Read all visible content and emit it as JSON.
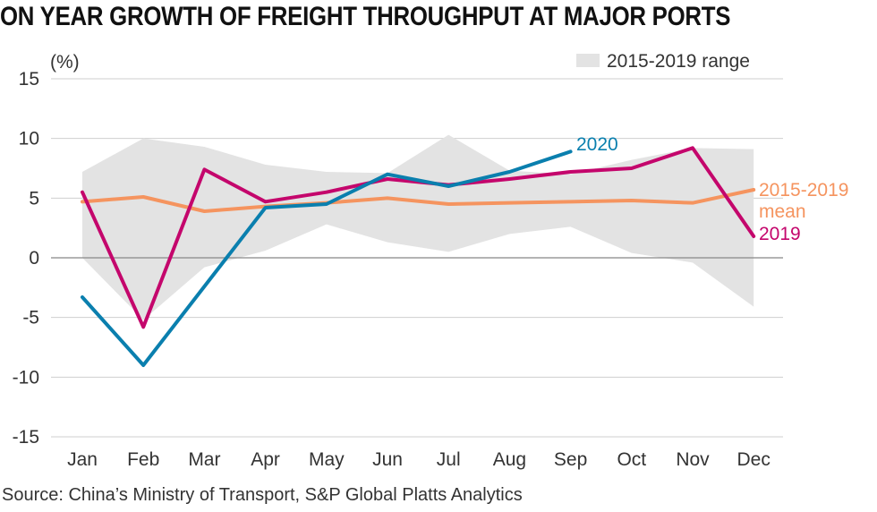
{
  "header": {
    "title": "ON YEAR GROWTH OF FREIGHT THROUGHPUT AT MAJOR PORTS"
  },
  "footer": {
    "source": "Source: China’s Ministry of Transport, S&P Global Platts Analytics"
  },
  "colors": {
    "range": "#e3e3e3",
    "mean": "#f5945f",
    "y2019": "#c4066c",
    "y2020": "#0a7fae",
    "grid": "#cfcfcf",
    "zero": "#888888"
  },
  "chart_data": {
    "type": "line",
    "title": "ON YEAR GROWTH OF FREIGHT THROUGHPUT AT MAJOR PORTS",
    "ylabel": "(%)",
    "xlabel": "",
    "ylim": [
      -15,
      15
    ],
    "yticks": [
      15,
      10,
      5,
      0,
      -5,
      -10,
      -15
    ],
    "grid": true,
    "legend_position": "top-right",
    "categories": [
      "Jan",
      "Feb",
      "Mar",
      "Apr",
      "May",
      "Jun",
      "Jul",
      "Aug",
      "Sep",
      "Oct",
      "Nov",
      "Dec"
    ],
    "range": {
      "name": "2015-2019 range",
      "upper": [
        7.2,
        10.0,
        9.3,
        7.8,
        7.2,
        7.1,
        10.3,
        7.3,
        7.0,
        8.2,
        9.2,
        9.1
      ],
      "lower": [
        0.0,
        -5.2,
        -0.8,
        0.6,
        2.8,
        1.3,
        0.5,
        2.0,
        2.6,
        0.4,
        -0.4,
        -4.1
      ]
    },
    "series": [
      {
        "name": "2015-2019 mean",
        "label_line1": "2015-2019",
        "label_line2": "mean",
        "color": "#f5945f",
        "values": [
          4.7,
          5.1,
          3.9,
          4.3,
          4.6,
          5.0,
          4.5,
          4.6,
          4.7,
          4.8,
          4.6,
          5.7
        ]
      },
      {
        "name": "2019",
        "label": "2019",
        "color": "#c4066c",
        "values": [
          5.5,
          -5.8,
          7.4,
          4.7,
          5.5,
          6.6,
          6.1,
          6.6,
          7.2,
          7.5,
          9.2,
          1.8
        ]
      },
      {
        "name": "2020",
        "label": "2020",
        "color": "#0a7fae",
        "values": [
          -3.3,
          -9.0,
          -2.4,
          4.2,
          4.5,
          7.0,
          6.0,
          7.2,
          8.9,
          null,
          null,
          null
        ]
      }
    ]
  }
}
